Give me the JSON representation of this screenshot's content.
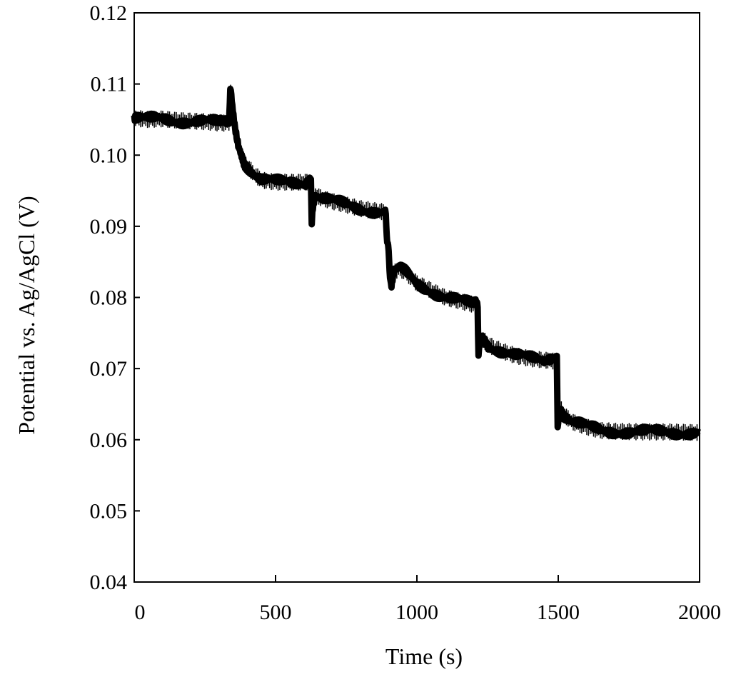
{
  "chart_data": {
    "type": "line",
    "title": "",
    "xlabel": "Time (s)",
    "ylabel": "Potential vs. Ag/AgCl (V)",
    "xlim": [
      0,
      2000
    ],
    "ylim": [
      0.04,
      0.12
    ],
    "xticks": [
      0,
      500,
      1000,
      1500,
      2000
    ],
    "xtick_labels": [
      "0",
      "500",
      "1000",
      "1500",
      "2000"
    ],
    "yticks": [
      0.04,
      0.05,
      0.06,
      0.07,
      0.08,
      0.09,
      0.1,
      0.11,
      0.12
    ],
    "ytick_labels": [
      "0.04",
      "0.05",
      "0.06",
      "0.07",
      "0.08",
      "0.09",
      "0.10",
      "0.11",
      "0.12"
    ],
    "grid": false,
    "line_color": "#000000",
    "series": [
      {
        "x": [
          0,
          50,
          100,
          150,
          200,
          250,
          300,
          335,
          340,
          345,
          355,
          370,
          390,
          420,
          450,
          500,
          550,
          600,
          625,
          628,
          632,
          640,
          660,
          700,
          750,
          800,
          850,
          890,
          895,
          900,
          905,
          910,
          920,
          940,
          960,
          1000,
          1050,
          1100,
          1150,
          1200,
          1215,
          1218,
          1222,
          1235,
          1260,
          1300,
          1350,
          1400,
          1450,
          1495,
          1498,
          1502,
          1508,
          1520,
          1550,
          1600,
          1650,
          1700,
          1800,
          1900,
          2000
        ],
        "y": [
          0.1052,
          0.105,
          0.1051,
          0.1049,
          0.1048,
          0.1047,
          0.1045,
          0.1045,
          0.109,
          0.1075,
          0.104,
          0.1015,
          0.099,
          0.0975,
          0.0965,
          0.0962,
          0.0962,
          0.0962,
          0.0962,
          0.091,
          0.093,
          0.0945,
          0.094,
          0.0935,
          0.093,
          0.0925,
          0.0922,
          0.092,
          0.088,
          0.086,
          0.083,
          0.0815,
          0.0835,
          0.084,
          0.0835,
          0.082,
          0.081,
          0.08,
          0.0795,
          0.079,
          0.079,
          0.072,
          0.0735,
          0.074,
          0.0732,
          0.0725,
          0.0718,
          0.0714,
          0.0712,
          0.071,
          0.062,
          0.064,
          0.0645,
          0.0635,
          0.0625,
          0.0618,
          0.0613,
          0.0612,
          0.0611,
          0.0611,
          0.061
        ]
      }
    ]
  }
}
